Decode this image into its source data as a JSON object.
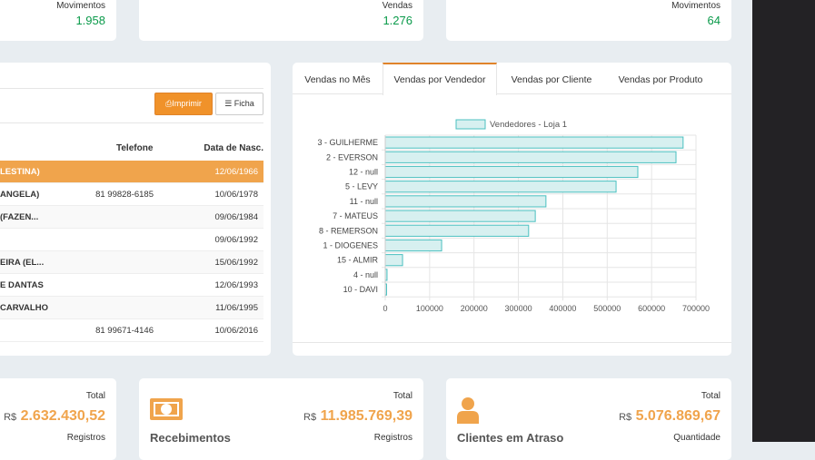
{
  "top_cards": [
    {
      "label": "Movimentos",
      "value": "1.958"
    },
    {
      "label": "Vendas",
      "value": "1.276"
    },
    {
      "label": "Movimentos",
      "value": "64"
    }
  ],
  "table_panel": {
    "print_label": "Imprimir",
    "ficha_label": "Ficha",
    "columns": [
      "Telefone",
      "Data de Nasc."
    ],
    "rows": [
      {
        "name": "LESTINA)",
        "phone": "",
        "date": "12/06/1966",
        "highlight": true
      },
      {
        "name": "ANGELA)",
        "phone": "81 99828-6185",
        "date": "10/06/1978"
      },
      {
        "name": "(FAZEN...",
        "phone": "",
        "date": "09/06/1984"
      },
      {
        "name": "",
        "phone": "",
        "date": "09/06/1992"
      },
      {
        "name": "EIRA (EL...",
        "phone": "",
        "date": "15/06/1992"
      },
      {
        "name": "E DANTAS",
        "phone": "",
        "date": "12/06/1993"
      },
      {
        "name": "CARVALHO",
        "phone": "",
        "date": "11/06/1995"
      },
      {
        "name": "",
        "phone": "81 99671-4146",
        "date": "10/06/2016"
      }
    ]
  },
  "tabs": [
    "Vendas no Mês",
    "Vendas por Vendedor",
    "Vendas por Cliente",
    "Vendas por Produto"
  ],
  "active_tab": 1,
  "chart_data": {
    "type": "bar",
    "orientation": "horizontal",
    "categories": [
      "3 - GUILHERME",
      "2 - EVERSON",
      "12 - null",
      "5 - LEVY",
      "11 - null",
      "7 - MATEUS",
      "8 - REMERSON",
      "1 - DIOGENES",
      "15 - ALMIR",
      "4 - null",
      "10 - DAVI"
    ],
    "series": [
      {
        "name": "Vendedores - Loja 1",
        "values": [
          671000,
          655000,
          569000,
          520000,
          362000,
          338000,
          323000,
          127000,
          39000,
          4000,
          3000
        ]
      }
    ],
    "xlim": [
      0,
      700000
    ],
    "xticks": [
      "0",
      "100000",
      "200000",
      "300000",
      "400000",
      "500000",
      "600000",
      "700000"
    ],
    "grid": true,
    "legend": "top",
    "colors": {
      "fill": "#d7f0f0",
      "stroke": "#4bc0c0"
    }
  },
  "bottom_cards": [
    {
      "title": "",
      "total_label": "Total",
      "currency": "R$",
      "value": "2.632.430,52",
      "sub_label": "Registros"
    },
    {
      "title": "Recebimentos",
      "icon": "money-bill-icon",
      "total_label": "Total",
      "currency": "R$",
      "value": "11.985.769,39",
      "sub_label": "Registros"
    },
    {
      "title": "Clientes em Atraso",
      "icon": "user-icon",
      "total_label": "Total",
      "currency": "R$",
      "value": "5.076.869,67",
      "sub_label": "Quantidade"
    }
  ],
  "accent": "#f0a44c"
}
